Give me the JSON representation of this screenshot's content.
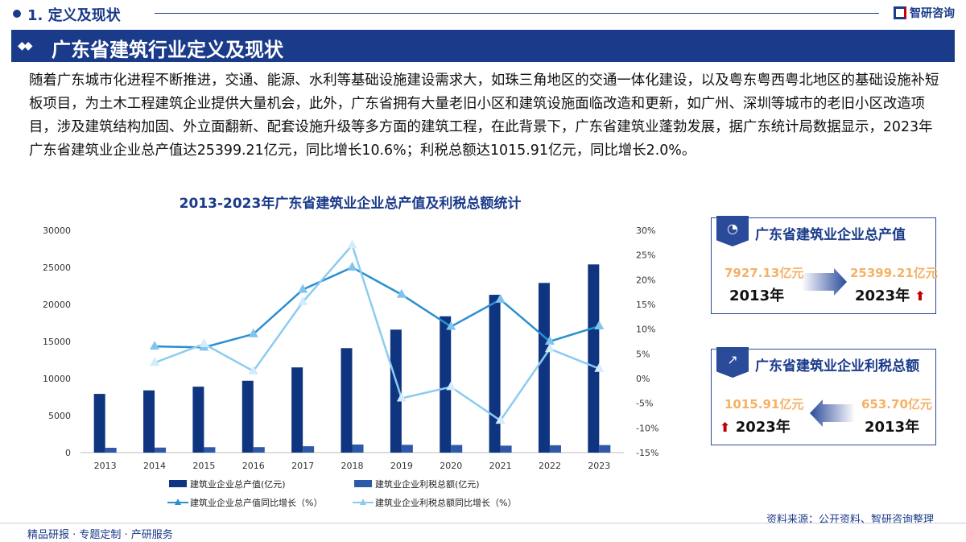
{
  "header": {
    "section": "1. 定义及现状",
    "brand": "智研咨询",
    "title": "广东省建筑行业定义及现状"
  },
  "paragraph": "随着广东城市化进程不断推进，交通、能源、水利等基础设施建设需求大，如珠三角地区的交通一体化建设，以及粤东粤西粤北地区的基础设施补短板项目，为土木工程建筑企业提供大量机会，此外，广东省拥有大量老旧小区和建筑设施面临改造和更新，如广州、深圳等城市的老旧小区改造项目，涉及建筑结构加固、外立面翻新、配套设施升级等多方面的建筑工程，在此背景下，广东省建筑业蓬勃发展，据广东统计局数据显示，2023年广东省建筑业企业总产值达25399.21亿元，同比增长10.6%；利税总额达1015.91亿元，同比增长2.0%。",
  "chart_data": {
    "type": "bar",
    "title": "2013-2023年广东省建筑业企业总产值及利税总额统计",
    "categories": [
      "2013",
      "2014",
      "2015",
      "2016",
      "2017",
      "2018",
      "2019",
      "2020",
      "2021",
      "2022",
      "2023"
    ],
    "ylim": [
      0,
      30000
    ],
    "yticks": [
      "0",
      "5000",
      "10000",
      "15000",
      "20000",
      "25000",
      "30000"
    ],
    "y2lim": [
      -15,
      30
    ],
    "y2ticks": [
      "-15%",
      "-10%",
      "-5%",
      "0%",
      "5%",
      "10%",
      "15%",
      "20%",
      "25%",
      "30%"
    ],
    "series": [
      {
        "name": "建筑业企业总产值(亿元)",
        "type": "bar",
        "axis": "left",
        "color": "#0f3580",
        "values": [
          7927.13,
          8400,
          8900,
          9700,
          11500,
          14100,
          16600,
          18400,
          21300,
          22900,
          25399.21
        ]
      },
      {
        "name": "建筑业企业利税总额(亿元)",
        "type": "bar",
        "axis": "left",
        "color": "#2e58a8",
        "values": [
          653.7,
          680,
          730,
          740,
          860,
          1090,
          1050,
          1030,
          940,
          995,
          1015.91
        ]
      },
      {
        "name": "建筑业企业总产值同比增长（%）",
        "type": "line",
        "axis": "right",
        "color": "#2a8fd0",
        "values": [
          null,
          6.5,
          6.3,
          9,
          18,
          22.5,
          17,
          10.5,
          16,
          7.5,
          10.6
        ]
      },
      {
        "name": "建筑业企业利税总额同比增长（%）",
        "type": "line",
        "axis": "right",
        "color": "#8ccbf0",
        "values": [
          null,
          3.2,
          7,
          1.5,
          15.5,
          27,
          -4,
          -1.7,
          -8.5,
          6,
          2.0
        ]
      }
    ],
    "legend": "bottom"
  },
  "cards": [
    {
      "title": "广东省建筑业企业总产值",
      "from_value": "7927.13亿元",
      "from_year": "2013年",
      "to_value": "25399.21亿元",
      "to_year": "2023年"
    },
    {
      "title": "广东省建筑业企业利税总额",
      "from_value": "653.70亿元",
      "from_year": "2013年",
      "to_value": "1015.91亿元",
      "to_year": "2023年"
    }
  ],
  "footer": {
    "left": "精品研报 · 专题定制 · 产研服务",
    "source": "资料来源：公开资料、智研咨询整理"
  }
}
